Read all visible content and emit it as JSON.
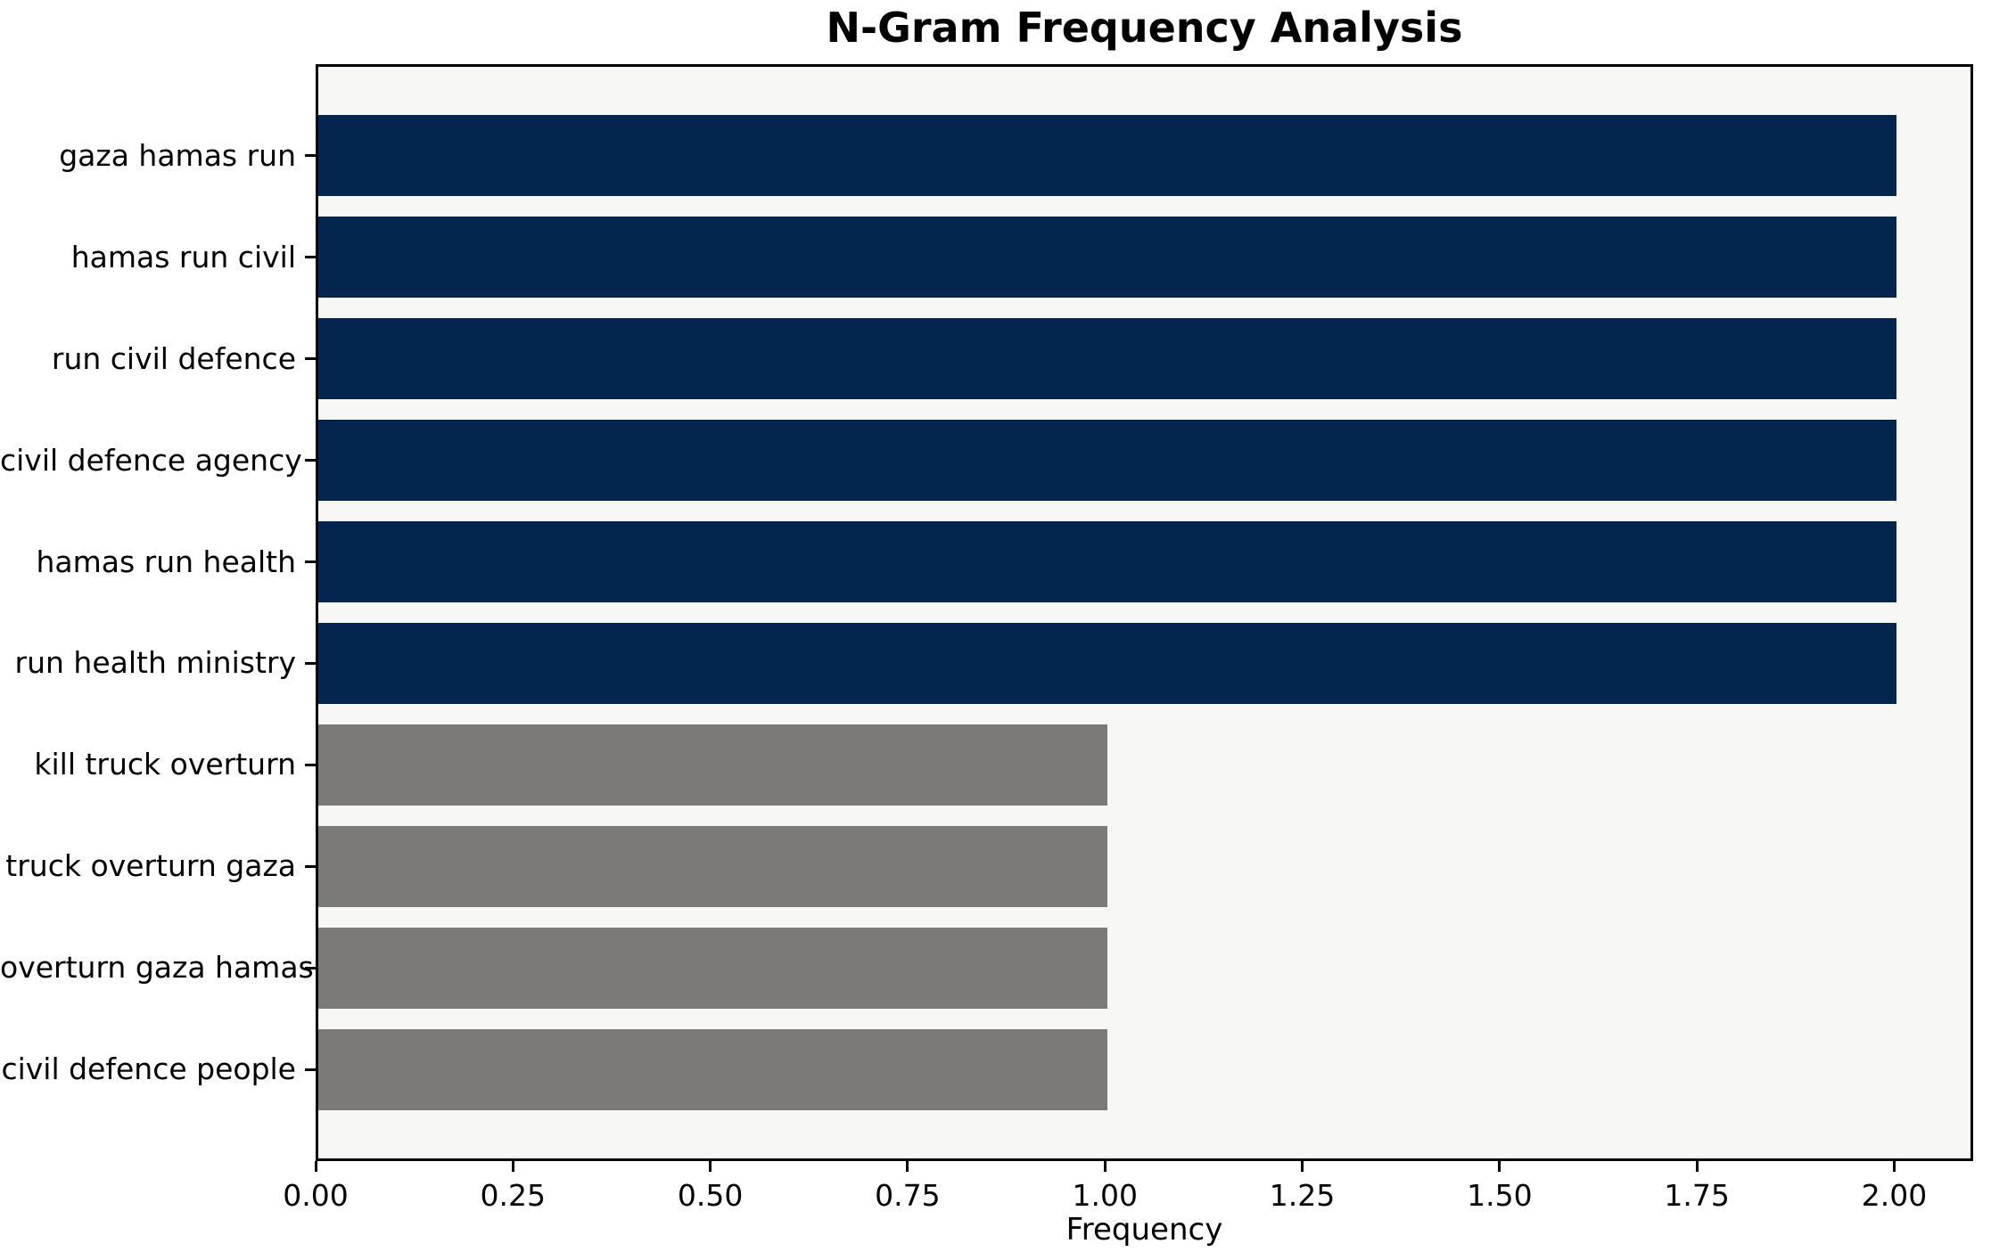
{
  "page": {
    "title": "N-Gram Frequency Analysis"
  },
  "chart_data": {
    "type": "bar",
    "orientation": "horizontal",
    "title": "N-Gram Frequency Analysis",
    "xlabel": "Frequency",
    "ylabel": "",
    "categories": [
      "gaza hamas run",
      "hamas run civil",
      "run civil defence",
      "civil defence agency",
      "hamas run health",
      "run health ministry",
      "kill truck overturn",
      "truck overturn gaza",
      "overturn gaza hamas",
      "civil defence people"
    ],
    "values": [
      2,
      2,
      2,
      2,
      2,
      2,
      1,
      1,
      1,
      1
    ],
    "bar_colors": [
      "#03254e",
      "#03254e",
      "#03254e",
      "#03254e",
      "#03254e",
      "#03254e",
      "#7b7a77",
      "#7b7a77",
      "#7b7a77",
      "#7b7a77"
    ],
    "xlim": [
      0,
      2.1
    ],
    "xticks": [
      0,
      0.25,
      0.5,
      0.75,
      1.0,
      1.25,
      1.5,
      1.75,
      2.0
    ],
    "xtick_labels": [
      "0.00",
      "0.25",
      "0.50",
      "0.75",
      "1.00",
      "1.25",
      "1.50",
      "1.75",
      "2.00"
    ],
    "bar_height_fraction": 0.8,
    "grid": false,
    "legend_position": "none",
    "plot_bg": "#f7f7f6",
    "figure_bg": "#ffffff",
    "axis_color": "#000000",
    "accent_navy": "#03254e",
    "accent_gray": "#7b7a77"
  }
}
